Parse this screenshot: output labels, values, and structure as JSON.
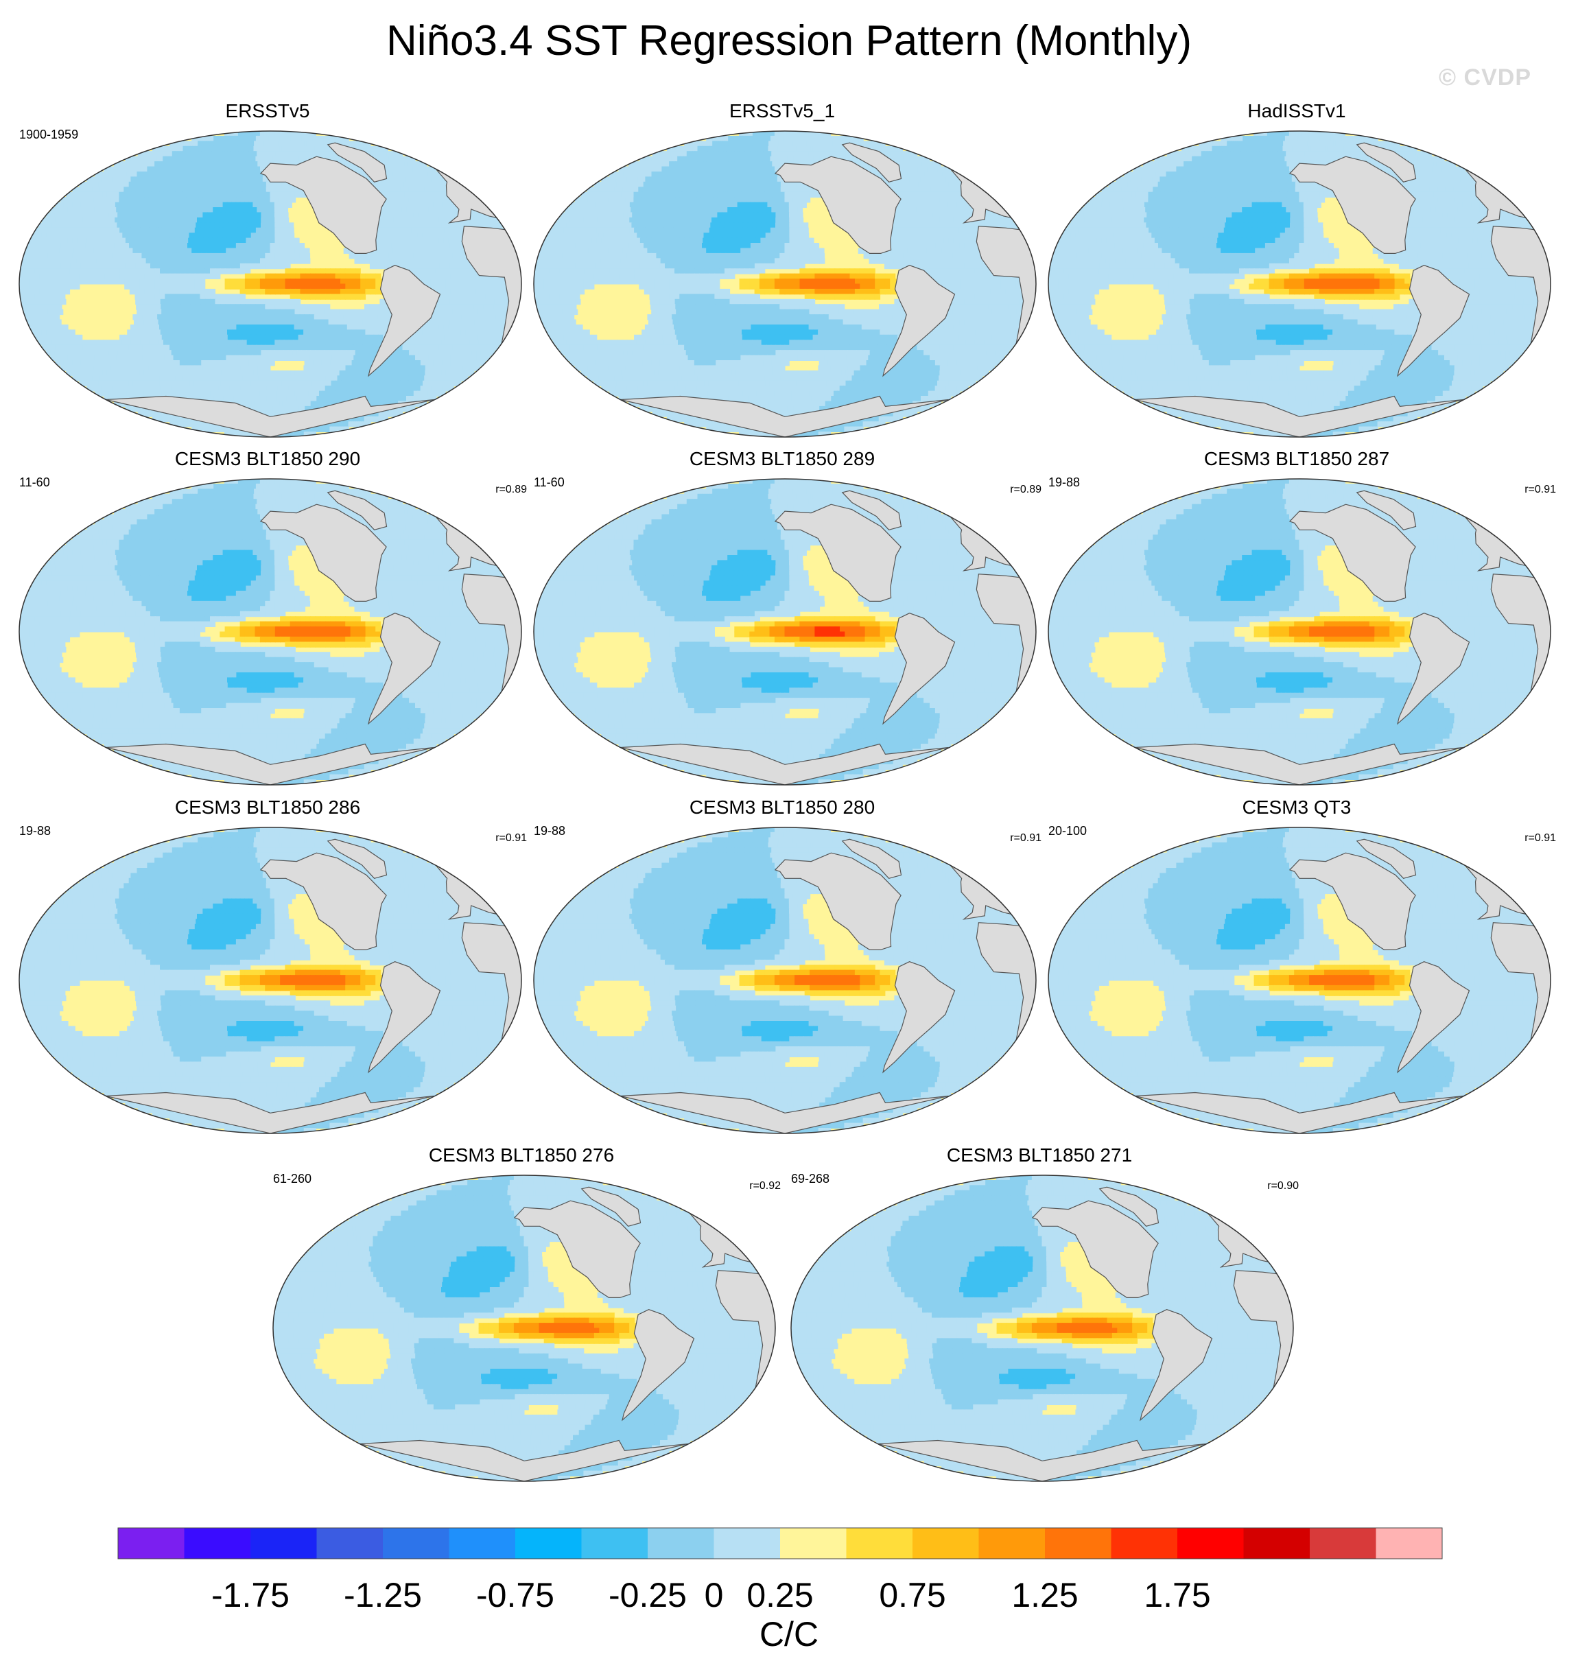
{
  "title": "Niño3.4 SST Regression Pattern (Monthly)",
  "watermark": "© CVDP",
  "chart_data": {
    "type": "heatmap",
    "variable": "SST regression onto Niño3.4 index",
    "map_projection": "global ellipse (Robinson-like)",
    "panels": [
      {
        "title": "ERSSTv5",
        "period": "1900-1959",
        "r": "",
        "nino_peak": 1.25
      },
      {
        "title": "ERSSTv5_1",
        "period": "",
        "r": "",
        "nino_peak": 1.25
      },
      {
        "title": "HadISSTv1",
        "period": "",
        "r": "",
        "nino_peak": 1.35
      },
      {
        "title": "CESM3 BLT1850 290",
        "period": "11-60",
        "r": "r=0.89",
        "nino_peak": 1.35
      },
      {
        "title": "CESM3 BLT1850 289",
        "period": "11-60",
        "r": "r=0.89",
        "nino_peak": 1.4
      },
      {
        "title": "CESM3 BLT1850 287",
        "period": "19-88",
        "r": "r=0.91",
        "nino_peak": 1.3
      },
      {
        "title": "CESM3 BLT1850 286",
        "period": "19-88",
        "r": "r=0.91",
        "nino_peak": 1.3
      },
      {
        "title": "CESM3 BLT1850 280",
        "period": "19-88",
        "r": "r=0.91",
        "nino_peak": 1.3
      },
      {
        "title": "CESM3 QT3",
        "period": "20-100",
        "r": "r=0.91",
        "nino_peak": 1.3
      },
      {
        "title": "CESM3 BLT1850 276",
        "period": "61-260",
        "r": "r=0.92",
        "nino_peak": 1.25
      },
      {
        "title": "CESM3 BLT1850 271",
        "period": "69-268",
        "r": "r=0.90",
        "nino_peak": 1.25
      }
    ],
    "colorbar": {
      "unit": "C/C",
      "levels": [
        -2,
        -1.75,
        -1.5,
        -1.25,
        -1,
        -0.75,
        -0.5,
        -0.25,
        0,
        0.25,
        0.5,
        0.75,
        1,
        1.25,
        1.5,
        1.75,
        2
      ],
      "tick_labels": [
        "-1.75",
        "-1.25",
        "-0.75",
        "-0.25",
        "0",
        "0.25",
        "0.75",
        "1.25",
        "1.75"
      ],
      "tick_values": [
        -1.75,
        -1.25,
        -0.75,
        -0.25,
        0,
        0.25,
        0.75,
        1.25,
        1.75
      ],
      "colors": [
        "#7b1ff0",
        "#3a0cff",
        "#1a24f7",
        "#3b5ce2",
        "#2d74ea",
        "#1f90fb",
        "#05b4fb",
        "#3ec0f2",
        "#8cd0ef",
        "#b7e0f4",
        "#fff59a",
        "#ffdd3a",
        "#ffbe17",
        "#ff9a0a",
        "#ff740a",
        "#ff3205",
        "#ff0000",
        "#d40000",
        "#d83a3a",
        "#ffb3b3"
      ],
      "land_color": "#dcdcdc"
    }
  }
}
